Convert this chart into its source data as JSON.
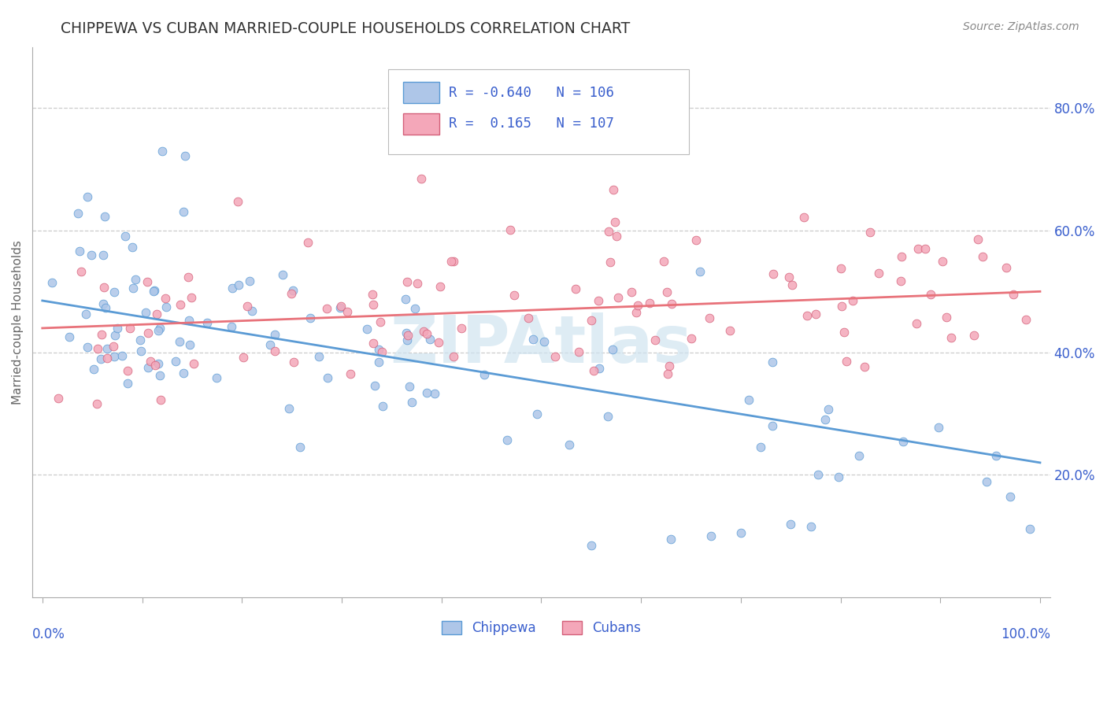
{
  "title": "CHIPPEWA VS CUBAN MARRIED-COUPLE HOUSEHOLDS CORRELATION CHART",
  "source_text": "Source: ZipAtlas.com",
  "ylabel": "Married-couple Households",
  "right_ytick_labels": [
    "20.0%",
    "40.0%",
    "60.0%",
    "80.0%"
  ],
  "right_yticks": [
    0.2,
    0.4,
    0.6,
    0.8
  ],
  "chippewa_R": -0.64,
  "chippewa_N": 106,
  "cuban_R": 0.165,
  "cuban_N": 107,
  "chippewa_color": "#aec6e8",
  "cuban_color": "#f4a7b9",
  "chippewa_line_color": "#5b9bd5",
  "cuban_line_color": "#e8727a",
  "legend_text_color": "#3a5fcd",
  "legend_R_color": "#cc0000",
  "background_color": "#ffffff",
  "grid_color": "#cccccc",
  "title_color": "#333333",
  "axis_label_color": "#666666",
  "watermark_color": "#d0e4f0",
  "ylim": [
    0.0,
    0.9
  ],
  "xlim": [
    -0.01,
    1.01
  ],
  "chip_trend_y0": 0.485,
  "chip_trend_y1": 0.22,
  "cub_trend_y0": 0.44,
  "cub_trend_y1": 0.5
}
